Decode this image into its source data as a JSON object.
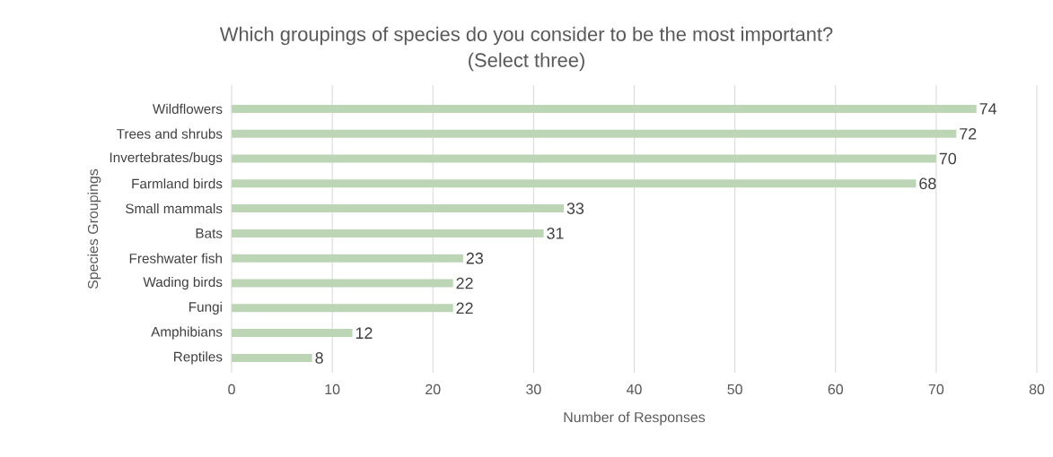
{
  "chart_data": {
    "type": "bar",
    "orientation": "horizontal",
    "title": "Which groupings of species do you consider to be the most important?",
    "subtitle": "(Select three)",
    "xlabel": "Number of Responses",
    "ylabel": "Species Groupings",
    "categories": [
      "Wildflowers",
      "Trees and shrubs",
      "Invertebrates/bugs",
      "Farmland birds",
      "Small mammals",
      "Bats",
      "Freshwater fish",
      "Wading birds",
      "Fungi",
      "Amphibians",
      "Reptiles"
    ],
    "values": [
      74,
      72,
      70,
      68,
      33,
      31,
      23,
      22,
      22,
      12,
      8
    ],
    "color": "#bcd6b5",
    "xlim": [
      0,
      80
    ],
    "xticks": [
      0,
      10,
      20,
      30,
      40,
      50,
      60,
      70,
      80
    ],
    "grid": "x",
    "data_labels": true
  }
}
